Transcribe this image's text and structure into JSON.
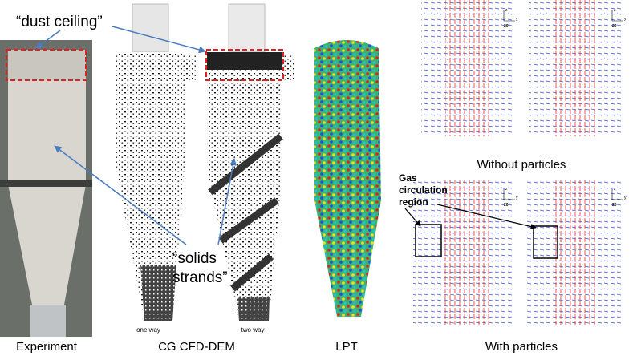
{
  "figure": {
    "callouts": {
      "dust_ceiling": "“dust ceiling”",
      "solids_strands": [
        "“solids",
        "strands”"
      ],
      "gas_circulation": [
        "Gas",
        "circulation",
        "region"
      ]
    },
    "panel_labels": {
      "experiment": "Experiment",
      "cfd_dem": "CG CFD-DEM",
      "lpt": "LPT",
      "without": "Without particles",
      "with": "With particles"
    },
    "cyclone_labels": [
      "one way",
      "two way"
    ],
    "axis_key": {
      "z": "z",
      "y": "y",
      "scale": "20"
    }
  }
}
